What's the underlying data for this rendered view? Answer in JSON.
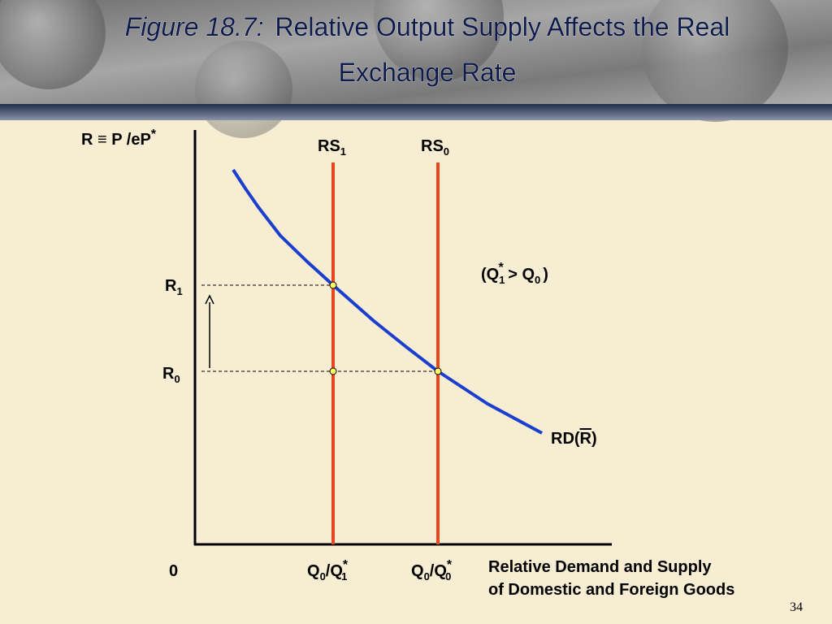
{
  "header": {
    "figure": "Figure 18.7:",
    "title_line1": "Relative Output Supply Affects the Real",
    "title_line2": "Exchange Rate"
  },
  "diagram": {
    "y_axis_label": {
      "main": "R ≡ P /eP",
      "sup": "*"
    },
    "rs1": {
      "main": "RS",
      "sub": "1"
    },
    "rs0": {
      "main": "RS",
      "sub": "0"
    },
    "r1": {
      "main": "R",
      "sub": "1"
    },
    "r0": {
      "main": "R",
      "sub": "0"
    },
    "note": {
      "open": "(Q",
      "sub1": "1",
      "sup": "*",
      "mid": " > Q",
      "sub2": "0",
      "close": ")"
    },
    "rd": {
      "open": "RD(",
      "bar": "R",
      "close": ")"
    },
    "origin": "0",
    "q1": {
      "a": "Q",
      "a_sub": "0",
      "slash": "/Q",
      "b_sup": "*",
      "b_sub": "1"
    },
    "q0": {
      "a": "Q",
      "a_sub": "0",
      "slash": "/Q",
      "b_sup": "*",
      "b_sub": "0"
    },
    "x_axis_label_line1": "Relative Demand and Supply",
    "x_axis_label_line2": "of Domestic and Foreign Goods"
  },
  "page_number": "34"
}
